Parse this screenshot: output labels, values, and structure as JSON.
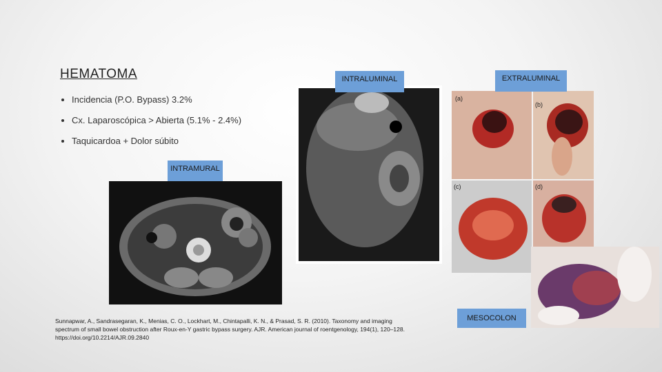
{
  "header": {
    "title": "HEMATOMA"
  },
  "bullets": [
    "Incidencia (P.O. Bypass) 3.2%",
    "Cx. Laparoscópica > Abierta (5.1% - 2.4%)",
    "Taquicardoa  + Dolor súbito"
  ],
  "labels": {
    "intramural": "INTRAMURAL",
    "intraluminal": "INTRALUMINAL",
    "extraluminal": "EXTRALUMINAL",
    "mesocolon": "MESOCOLON"
  },
  "photo_letters": [
    "(a)",
    "(b)",
    "(c)",
    "(d)"
  ],
  "citation": "Sunnapwar, A., Sandrasegaran, K., Menias, C. O., Lockhart, M., Chintapalli, K. N., & Prasad, S. R. (2010). Taxonomy and imaging spectrum of small bowel obstruction after Roux-en-Y gastric bypass surgery. AJR. American journal of roentgenology, 194(1), 120–128. https://doi.org/10.2214/AJR.09.2840"
}
